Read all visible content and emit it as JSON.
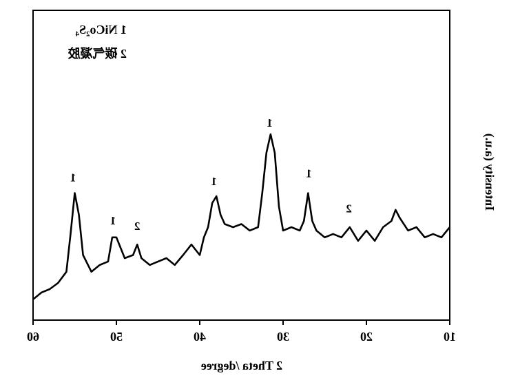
{
  "chart_data": {
    "type": "line",
    "xlabel": "2 Theta /degree",
    "ylabel": "Intensity (a.u.)",
    "legend": [
      "1 NiCo₂S₄",
      "2 碳气凝胶"
    ],
    "xlim": [
      10,
      60
    ],
    "xticks": [
      10,
      20,
      30,
      40,
      50,
      60
    ],
    "ylim": [
      0,
      100
    ],
    "color": "#000000",
    "x": [
      10,
      11,
      12,
      13,
      14,
      15,
      16,
      16.5,
      17,
      18,
      19,
      20,
      21,
      22,
      23,
      24,
      25,
      26,
      26.5,
      27,
      27.5,
      28,
      29,
      30,
      30.5,
      31,
      31.5,
      32,
      32.5,
      33,
      34,
      35,
      36,
      37,
      37.5,
      38,
      38.5,
      39,
      39.5,
      40,
      41,
      42,
      43,
      44,
      45,
      46,
      47,
      47.5,
      48,
      49,
      50,
      50.5,
      51,
      52,
      53,
      54,
      54.5,
      55,
      55.5,
      56,
      57,
      58,
      59,
      60
    ],
    "values": [
      30,
      26.7,
      27.8,
      26.7,
      30,
      28.9,
      33,
      35.6,
      32,
      30,
      25.6,
      28.9,
      25.6,
      30,
      26.7,
      27.8,
      26.7,
      28.9,
      32,
      41,
      32,
      28.9,
      30,
      28.9,
      36.7,
      54,
      60,
      54,
      41,
      30,
      28.9,
      31,
      30,
      31,
      34,
      40,
      37.8,
      30,
      26.7,
      21,
      24.4,
      21,
      17.8,
      20,
      18.9,
      17.8,
      20,
      24.4,
      21,
      20,
      26.7,
      26.7,
      18.9,
      17.8,
      15.6,
      21,
      34,
      41,
      27.8,
      15.6,
      12,
      10,
      8.9,
      6.7
    ],
    "annotations": [
      {
        "text": "1",
        "x": 55.2,
        "y": 45.6
      },
      {
        "text": "1",
        "x": 50.4,
        "y": 31.8
      },
      {
        "text": "2",
        "x": 47.5,
        "y": 30
      },
      {
        "text": "1",
        "x": 38.3,
        "y": 44.4
      },
      {
        "text": "1",
        "x": 31.6,
        "y": 63.3
      },
      {
        "text": "1",
        "x": 26.9,
        "y": 47
      },
      {
        "text": "2",
        "x": 22.1,
        "y": 35.6
      }
    ]
  }
}
